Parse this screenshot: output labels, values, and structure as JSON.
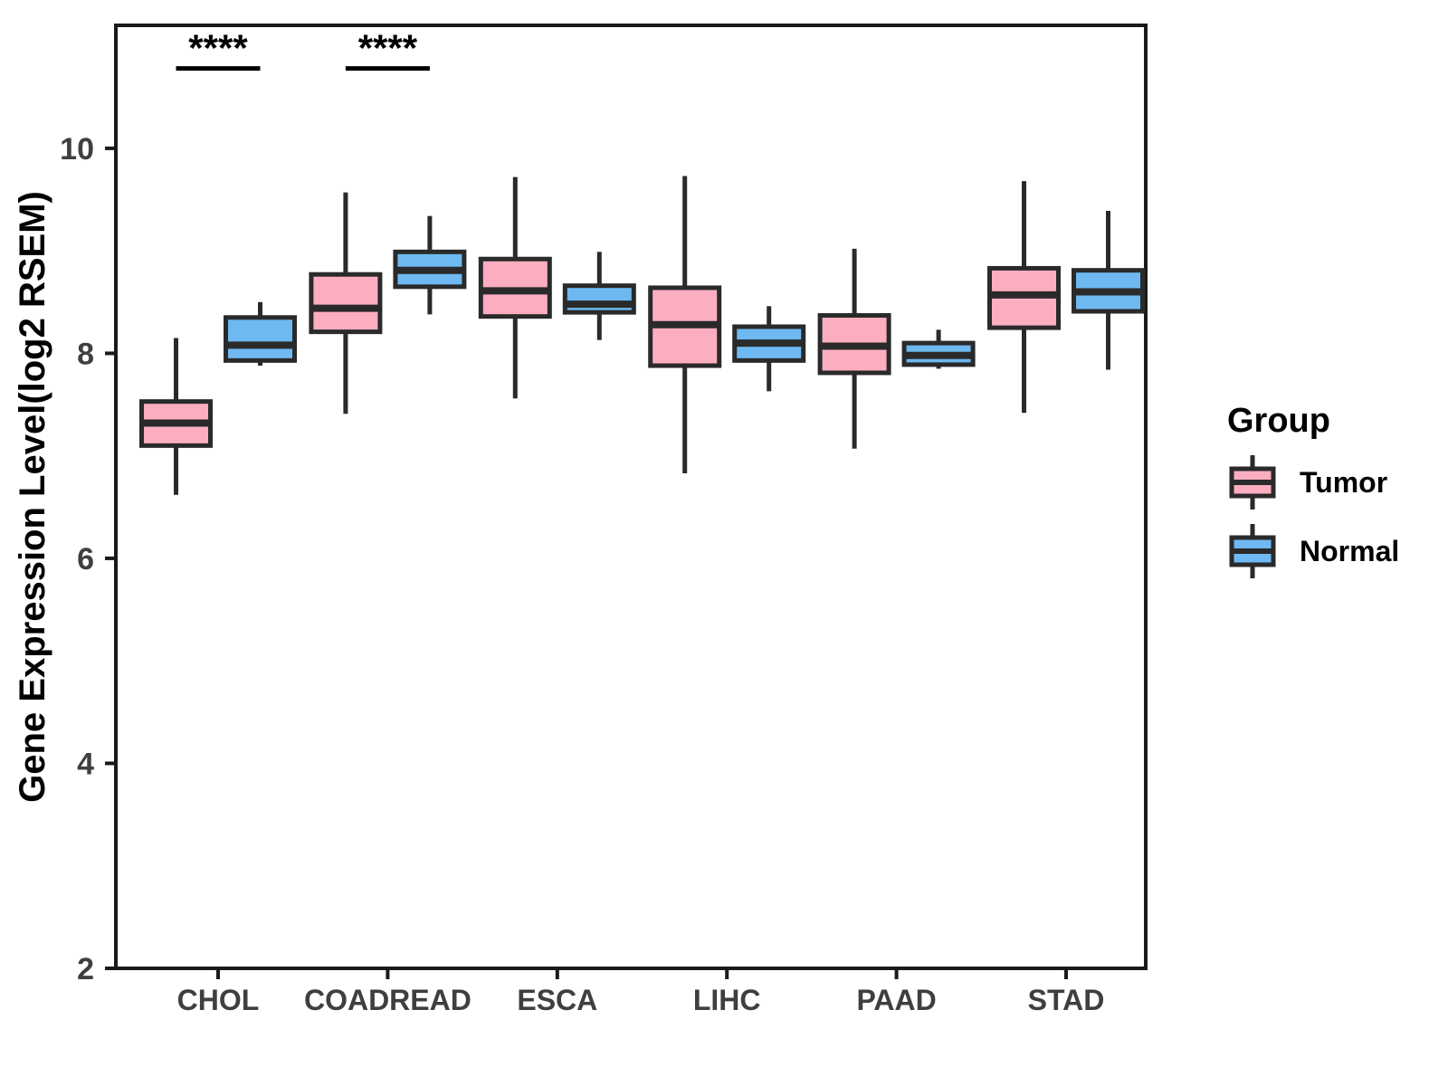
{
  "chart_data": {
    "type": "box",
    "title": "",
    "ylabel": "Gene Expression Level(log2 RSEM)",
    "xlabel": "",
    "categories": [
      "CHOL",
      "COADREAD",
      "ESCA",
      "LIHC",
      "PAAD",
      "STAD"
    ],
    "ylim": [
      2,
      11.2
    ],
    "yticks": [
      2,
      4,
      6,
      8,
      10
    ],
    "grid": false,
    "legend": {
      "title": "Group",
      "position": "right"
    },
    "series": [
      {
        "name": "Tumor",
        "color": "#FCAEC0",
        "boxes": [
          {
            "whisker_low": 6.62,
            "q1": 7.1,
            "median": 7.32,
            "q3": 7.53,
            "whisker_high": 8.15
          },
          {
            "whisker_low": 7.41,
            "q1": 8.21,
            "median": 8.44,
            "q3": 8.77,
            "whisker_high": 9.57
          },
          {
            "whisker_low": 7.56,
            "q1": 8.36,
            "median": 8.61,
            "q3": 8.92,
            "whisker_high": 9.72
          },
          {
            "whisker_low": 6.83,
            "q1": 7.88,
            "median": 8.28,
            "q3": 8.64,
            "whisker_high": 9.73
          },
          {
            "whisker_low": 7.07,
            "q1": 7.81,
            "median": 8.07,
            "q3": 8.37,
            "whisker_high": 9.02
          },
          {
            "whisker_low": 7.42,
            "q1": 8.25,
            "median": 8.57,
            "q3": 8.83,
            "whisker_high": 9.68
          }
        ]
      },
      {
        "name": "Normal",
        "color": "#6EB9F1",
        "boxes": [
          {
            "whisker_low": 7.88,
            "q1": 7.93,
            "median": 8.08,
            "q3": 8.35,
            "whisker_high": 8.5
          },
          {
            "whisker_low": 8.38,
            "q1": 8.65,
            "median": 8.81,
            "q3": 8.99,
            "whisker_high": 9.34
          },
          {
            "whisker_low": 8.13,
            "q1": 8.4,
            "median": 8.48,
            "q3": 8.66,
            "whisker_high": 8.99
          },
          {
            "whisker_low": 7.63,
            "q1": 7.93,
            "median": 8.1,
            "q3": 8.26,
            "whisker_high": 8.46
          },
          {
            "whisker_low": 7.85,
            "q1": 7.89,
            "median": 7.98,
            "q3": 8.1,
            "whisker_high": 8.23
          },
          {
            "whisker_low": 7.84,
            "q1": 8.41,
            "median": 8.6,
            "q3": 8.81,
            "whisker_high": 9.39
          }
        ]
      }
    ],
    "annotations": [
      {
        "category": "CHOL",
        "label": "****",
        "bar_value": 10.78
      },
      {
        "category": "COADREAD",
        "label": "****",
        "bar_value": 10.78
      }
    ],
    "style": {
      "box_border": "#2A2A2A",
      "axis_color": "#1A1A1A",
      "tick_label_color": "#3F3F3F",
      "background": "#FFFFFF"
    }
  }
}
